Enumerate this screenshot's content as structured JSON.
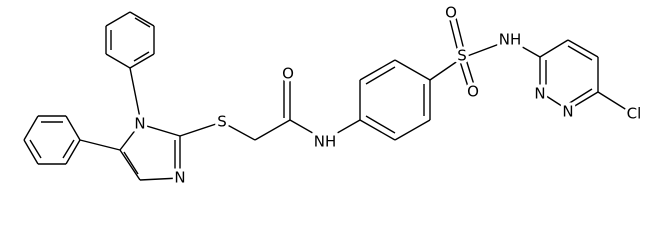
{
  "molecule": {
    "atoms": [
      "N",
      "N",
      "S",
      "O",
      "NH",
      "S",
      "O",
      "O",
      "NH",
      "N",
      "N",
      "Cl"
    ]
  }
}
